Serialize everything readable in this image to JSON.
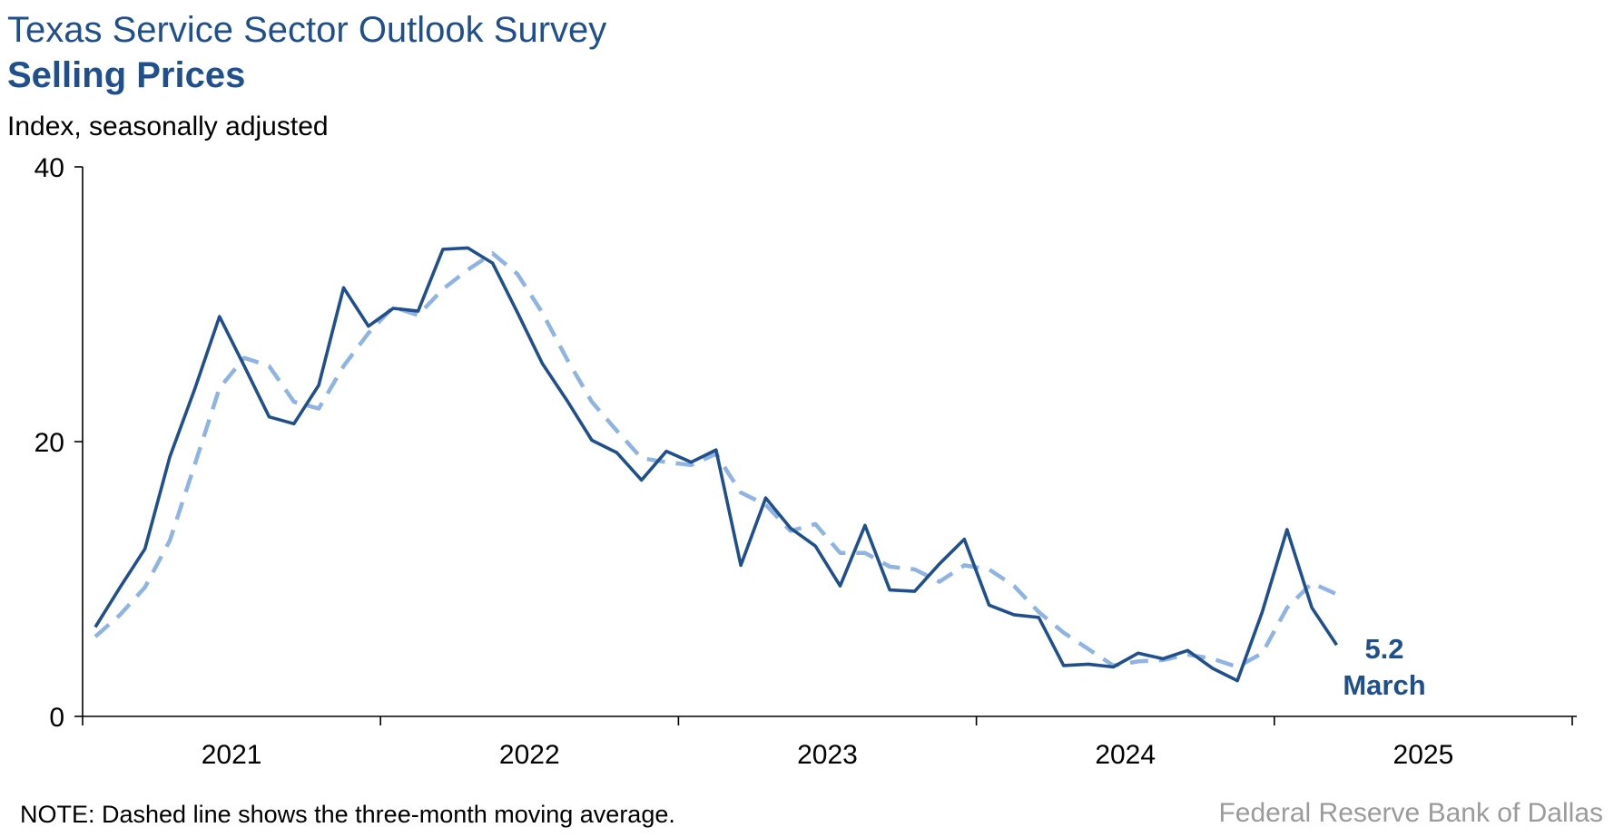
{
  "title": "Texas Service Sector Outlook Survey",
  "subtitle": "Selling Prices",
  "unit_label": "Index, seasonally adjusted",
  "note": "NOTE: Dashed line shows the three-month moving average.",
  "source": "Federal Reserve Bank of Dallas",
  "colors": {
    "series": "#1f4f8c",
    "moving_average": "#8fb4e3",
    "title": "#1f4f8c",
    "source": "#9b9b9b"
  },
  "chart_data": {
    "type": "line",
    "x_unit": "months starting Jan 2021",
    "x_tick_labels": [
      "2021",
      "2022",
      "2023",
      "2024",
      "2025"
    ],
    "ylim": [
      0,
      40
    ],
    "y_ticks": [
      "0",
      "20",
      "40"
    ],
    "series": [
      {
        "style": "solid",
        "values": [
          6.5,
          9.4,
          12.2,
          18.9,
          23.8,
          29.1,
          25.5,
          21.8,
          21.3,
          24.1,
          31.2,
          28.4,
          29.7,
          29.5,
          34.0,
          34.1,
          33.0,
          29.4,
          25.7,
          23.0,
          20.1,
          19.2,
          17.2,
          19.3,
          18.5,
          19.4,
          11.0,
          15.9,
          13.7,
          12.4,
          9.5,
          13.9,
          9.2,
          9.1,
          11.1,
          12.9,
          8.1,
          7.4,
          7.2,
          3.7,
          3.8,
          3.6,
          4.6,
          4.2,
          4.8,
          3.5,
          2.6,
          7.6,
          13.6,
          7.9,
          5.2
        ]
      },
      {
        "style": "dashed",
        "values": [
          5.8,
          7.4,
          9.4,
          12.8,
          18.3,
          23.9,
          26.1,
          25.5,
          22.9,
          22.4,
          25.5,
          27.9,
          29.8,
          29.2,
          31.1,
          32.5,
          33.7,
          32.2,
          29.4,
          26.0,
          22.9,
          20.8,
          18.8,
          18.5,
          18.3,
          19.1,
          16.3,
          15.4,
          13.5,
          14.0,
          11.9,
          11.9,
          10.9,
          10.7,
          9.8,
          11.0,
          10.7,
          9.5,
          7.6,
          6.1,
          4.9,
          3.7,
          4.0,
          4.1,
          4.5,
          4.2,
          3.6,
          4.6,
          7.9,
          9.7,
          8.9
        ]
      }
    ],
    "annotation": {
      "value": "5.2",
      "month": "March"
    },
    "grid": false
  }
}
